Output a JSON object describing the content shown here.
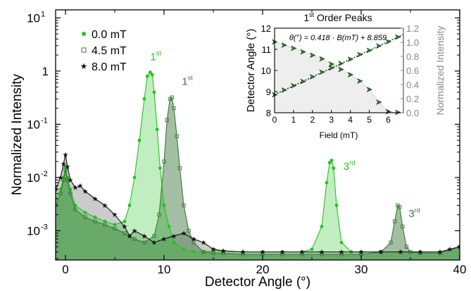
{
  "chart_data": [
    {
      "type": "area",
      "xlabel": "Detector Angle (°)",
      "ylabel": "Normalized Intensity",
      "xlim": [
        -1,
        40
      ],
      "ylim_log10": [
        -3.55,
        1.15
      ],
      "y_scale": "log",
      "x_ticks": [
        0,
        10,
        20,
        30,
        40
      ],
      "y_ticks": [
        {
          "exp": "1",
          "label": "10"
        },
        {
          "exp": "0",
          "label": "1"
        },
        {
          "exp": "-1",
          "label": "10"
        },
        {
          "exp": "-2",
          "label": "10"
        },
        {
          "exp": "-3",
          "label": "10"
        }
      ],
      "legend_placement": "top-left",
      "series": [
        {
          "name": "0.0 mT",
          "color": "#22c31c",
          "marker": "filled-circle",
          "x": [
            -1,
            -0.5,
            -0.2,
            0,
            0.2,
            0.5,
            1,
            2,
            3,
            4,
            5,
            6,
            6.5,
            7,
            7.5,
            8,
            8.3,
            8.6,
            8.8,
            9.0,
            9.3,
            9.6,
            10,
            10.5,
            11,
            12,
            13,
            14,
            15,
            16,
            18,
            20,
            22,
            24,
            25,
            26,
            26.5,
            26.8,
            27.0,
            27.2,
            27.5,
            28,
            29,
            30,
            32,
            34,
            36,
            38,
            40
          ],
          "y": [
            0.004,
            0.006,
            0.01,
            0.016,
            0.01,
            0.006,
            0.003,
            0.0022,
            0.0018,
            0.0015,
            0.0013,
            0.0015,
            0.003,
            0.01,
            0.05,
            0.3,
            0.8,
            0.95,
            0.85,
            0.4,
            0.08,
            0.015,
            0.003,
            0.0012,
            0.0006,
            0.00045,
            0.0004,
            0.0004,
            0.00042,
            0.00042,
            0.0004,
            0.0004,
            0.0004,
            0.0004,
            0.00045,
            0.0012,
            0.008,
            0.019,
            0.021,
            0.015,
            0.003,
            0.0006,
            0.0004,
            0.0004,
            0.0004,
            0.0004,
            0.0004,
            0.0004,
            0.0005
          ]
        },
        {
          "name": "4.5 mT",
          "color": "#3a7a3a",
          "marker": "open-square",
          "x": [
            -1,
            -0.5,
            -0.2,
            0,
            0.2,
            0.5,
            1,
            2,
            3,
            4,
            5,
            6,
            7,
            8,
            9,
            9.5,
            10,
            10.3,
            10.6,
            10.8,
            11,
            11.3,
            11.6,
            12,
            12.5,
            13,
            14,
            15,
            16,
            18,
            20,
            22,
            24,
            26,
            28,
            30,
            32,
            33,
            33.4,
            33.7,
            33.9,
            34.2,
            34.6,
            35,
            36,
            38,
            40
          ],
          "y": [
            0.003,
            0.005,
            0.009,
            0.014,
            0.009,
            0.005,
            0.0025,
            0.0018,
            0.0015,
            0.0013,
            0.0011,
            0.0009,
            0.0007,
            0.0006,
            0.0008,
            0.002,
            0.02,
            0.12,
            0.3,
            0.32,
            0.2,
            0.06,
            0.015,
            0.003,
            0.001,
            0.0006,
            0.0004,
            0.00038,
            0.00038,
            0.00036,
            0.00036,
            0.00036,
            0.00036,
            0.00036,
            0.00036,
            0.00036,
            0.0004,
            0.0006,
            0.0015,
            0.003,
            0.0028,
            0.0012,
            0.0005,
            0.0004,
            0.00038,
            0.00038,
            0.0005
          ]
        },
        {
          "name": "8.0 mT",
          "color": "#111111",
          "marker": "star",
          "x": [
            -1,
            -0.5,
            -0.2,
            0,
            0.2,
            0.5,
            1,
            1.5,
            2,
            3,
            4,
            5,
            6,
            6.5,
            7,
            8,
            9,
            10,
            11,
            12,
            13,
            14,
            15,
            16,
            18,
            20,
            22,
            24,
            26,
            28,
            30,
            32,
            34,
            36,
            38,
            39,
            40
          ],
          "y": [
            0.006,
            0.01,
            0.018,
            0.027,
            0.016,
            0.009,
            0.0065,
            0.007,
            0.0055,
            0.004,
            0.003,
            0.002,
            0.0012,
            0.0008,
            0.001,
            0.0008,
            0.0006,
            0.0007,
            0.0008,
            0.0009,
            0.0007,
            0.0006,
            0.00045,
            0.00042,
            0.0004,
            0.0004,
            0.0004,
            0.0004,
            0.0004,
            0.0004,
            0.0004,
            0.0004,
            0.0004,
            0.0004,
            0.0004,
            0.00045,
            0.0005
          ]
        }
      ],
      "annotations": [
        {
          "base": "1",
          "sup": "st",
          "x": 8.6,
          "y": 1.6,
          "color": "#22c31c"
        },
        {
          "base": "1",
          "sup": "st",
          "x": 11.8,
          "y": 0.55,
          "color": "#3a7a3a"
        },
        {
          "base": "3",
          "sup": "rd",
          "x": 28.2,
          "y": 0.014,
          "color": "#22c31c"
        },
        {
          "base": "3",
          "sup": "rd",
          "x": 34.8,
          "y": 0.0018,
          "color": "#3a7a3a"
        }
      ]
    },
    {
      "type": "scatter",
      "title": {
        "base": "1",
        "sup": "st",
        "rest": " Order Peaks"
      },
      "xlabel": "Field (mT)",
      "ylabel": "Detector Angle (°)",
      "y2label": "Normalized Intensity",
      "xlim": [
        0,
        6.8
      ],
      "ylim": [
        8,
        12
      ],
      "y2lim": [
        0,
        1.2
      ],
      "x_ticks": [
        "0",
        "1",
        "2",
        "3",
        "4",
        "5",
        "6"
      ],
      "y_ticks": [
        "8",
        "9",
        "10",
        "11",
        "12"
      ],
      "y2_ticks": [
        "0.0",
        "0.2",
        "0.4",
        "0.6",
        "0.8",
        "1.0",
        "1.2"
      ],
      "fit_equation": "θ(°) = 0.418 · B(mT) + 8.859",
      "fit": {
        "slope": 0.418,
        "intercept": 8.859
      },
      "series": [
        {
          "name": "peak angle (upper branch)",
          "color": "#2a7a2a",
          "x": [
            0,
            0.5,
            1,
            1.5,
            2,
            2.5,
            3,
            3.5,
            4,
            4.5,
            5,
            5.5,
            6,
            6.5
          ],
          "y": [
            8.85,
            9.07,
            9.28,
            9.48,
            9.7,
            9.92,
            10.12,
            10.33,
            10.53,
            10.75,
            10.95,
            11.16,
            11.36,
            11.58
          ]
        },
        {
          "name": "peak angle (lower branch)",
          "color": "#2a7a2a",
          "x": [
            0,
            0.5,
            1,
            1.5,
            2,
            2.5,
            3,
            3.5,
            4,
            4.5,
            5,
            5.5,
            6,
            6.5
          ],
          "y": [
            11.35,
            11.2,
            11.05,
            10.88,
            10.72,
            10.55,
            10.3,
            10.05,
            9.8,
            9.5,
            9.1,
            8.5,
            8.05,
            8.02
          ]
        }
      ]
    }
  ]
}
